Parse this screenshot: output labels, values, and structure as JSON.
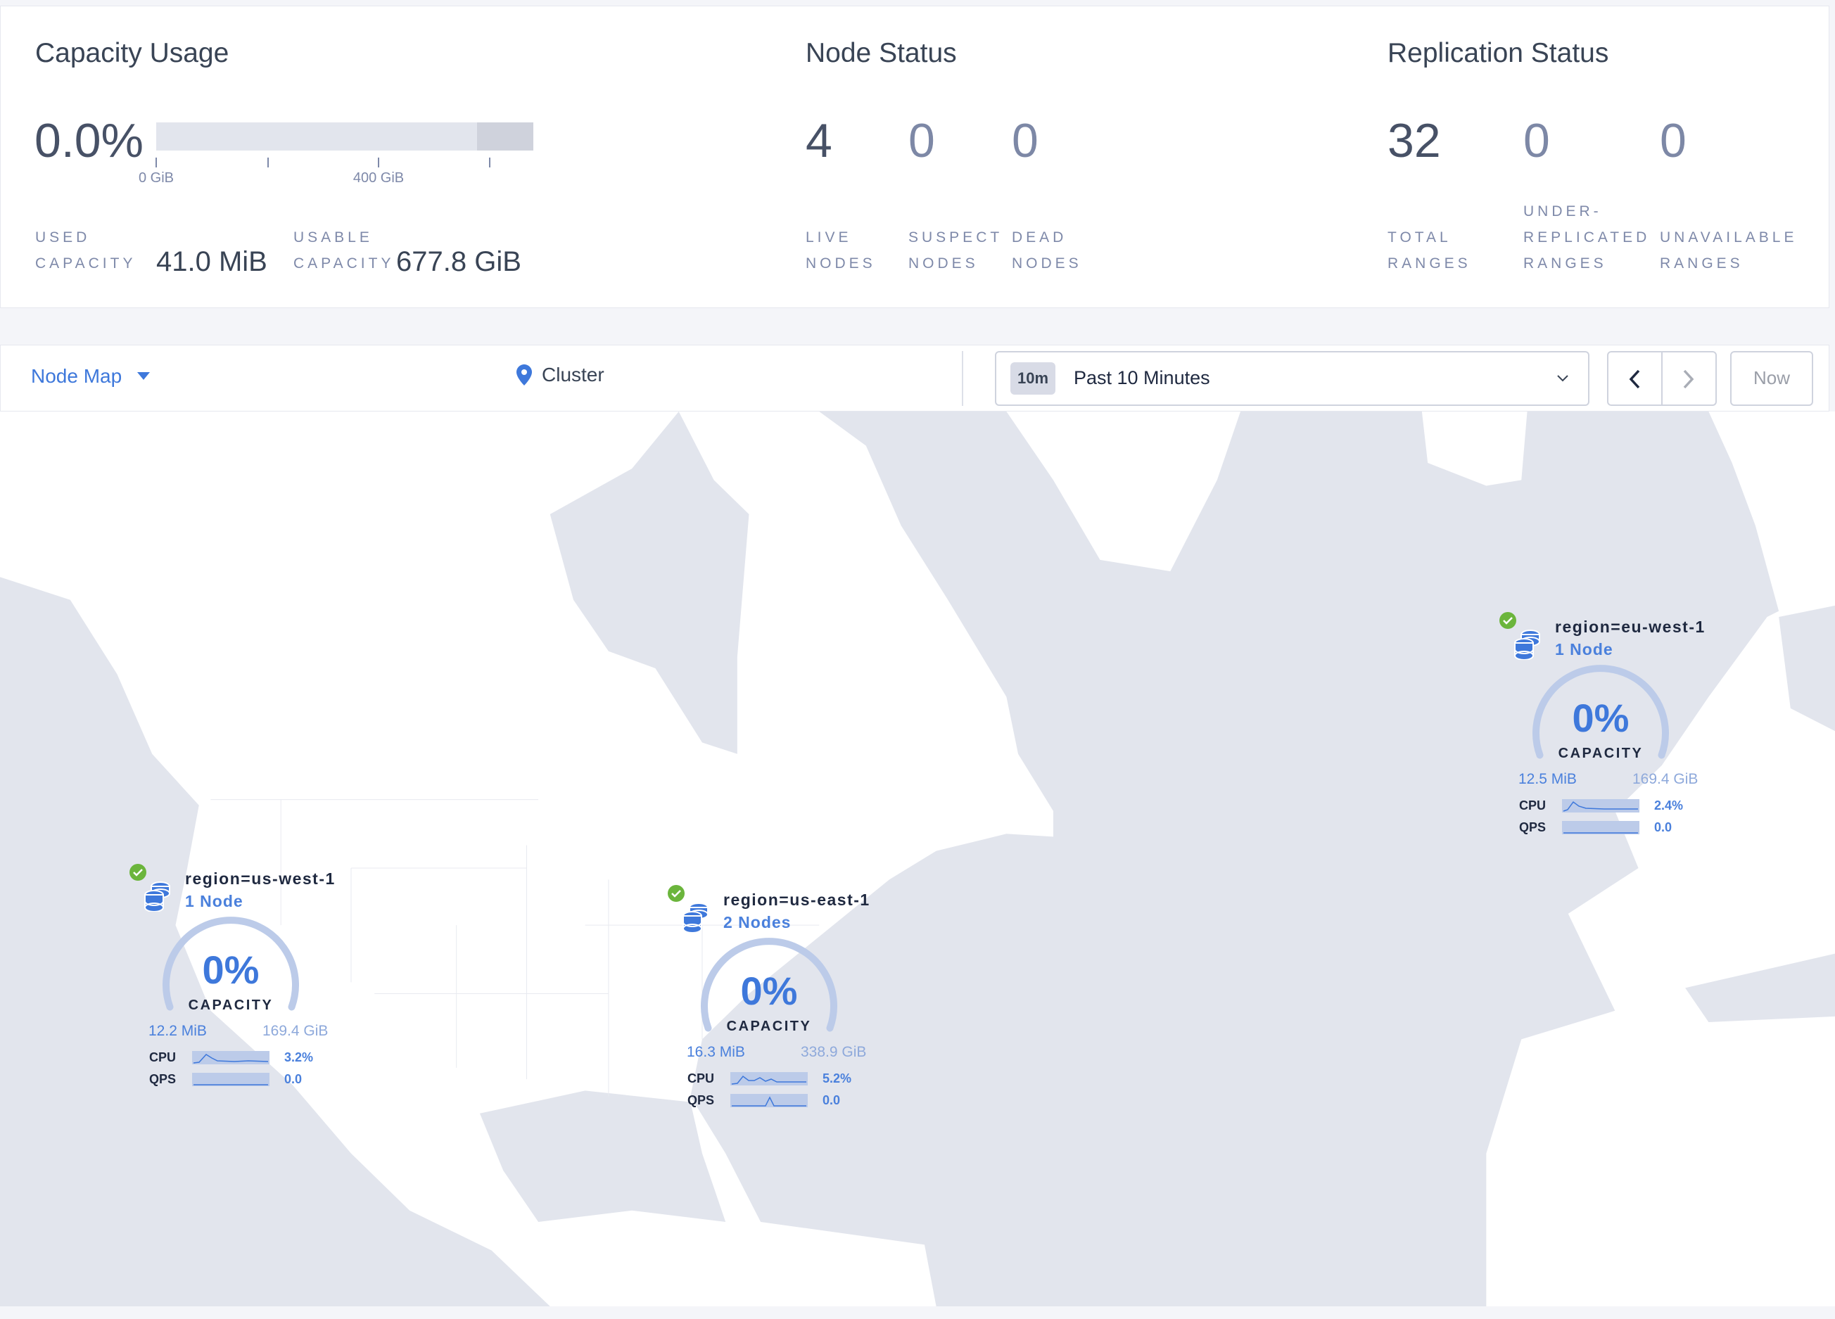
{
  "capacity": {
    "title": "Capacity Usage",
    "percent": "0.0%",
    "usage_fraction": 0.0,
    "ticks": [
      "0 GiB",
      "400 GiB"
    ],
    "used_label": [
      "USED",
      "CAPACITY"
    ],
    "used_value": "41.0 MiB",
    "usable_label": [
      "USABLE",
      "CAPACITY"
    ],
    "usable_value": "677.8 GiB"
  },
  "node_status": {
    "title": "Node Status",
    "stats": [
      {
        "value": "4",
        "label": [
          "LIVE",
          "NODES"
        ]
      },
      {
        "value": "0",
        "label": [
          "SUSPECT",
          "NODES"
        ]
      },
      {
        "value": "0",
        "label": [
          "DEAD",
          "NODES"
        ]
      }
    ]
  },
  "replication_status": {
    "title": "Replication Status",
    "stats": [
      {
        "value": "32",
        "label": [
          "",
          "TOTAL",
          "RANGES"
        ]
      },
      {
        "value": "0",
        "label": [
          "UNDER-",
          "REPLICATED",
          "RANGES"
        ]
      },
      {
        "value": "0",
        "label": [
          "",
          "UNAVAILABLE",
          "RANGES"
        ]
      }
    ]
  },
  "toolbar": {
    "view_selector": "Node Map",
    "breadcrumb": "Cluster",
    "time_badge": "10m",
    "time_range": "Past 10 Minutes",
    "now_label": "Now"
  },
  "colors": {
    "accent": "#3e78db",
    "live": "#6bb53c",
    "water": "#e2e5ed",
    "land": "#ffffff"
  },
  "localities": [
    {
      "title": "region=us-west-1",
      "nodes": "1 Node",
      "capacity_pct": "0%",
      "capacity_label": "CAPACITY",
      "used": "12.2 MiB",
      "total": "169.4 GiB",
      "cpu_label": "CPU",
      "cpu": "3.2%",
      "qps_label": "QPS",
      "qps": "0.0",
      "status": "live"
    },
    {
      "title": "region=us-east-1",
      "nodes": "2 Nodes",
      "capacity_pct": "0%",
      "capacity_label": "CAPACITY",
      "used": "16.3 MiB",
      "total": "338.9 GiB",
      "cpu_label": "CPU",
      "cpu": "5.2%",
      "qps_label": "QPS",
      "qps": "0.0",
      "status": "live"
    },
    {
      "title": "region=eu-west-1",
      "nodes": "1 Node",
      "capacity_pct": "0%",
      "capacity_label": "CAPACITY",
      "used": "12.5 MiB",
      "total": "169.4 GiB",
      "cpu_label": "CPU",
      "cpu": "2.4%",
      "qps_label": "QPS",
      "qps": "0.0",
      "status": "live"
    }
  ]
}
